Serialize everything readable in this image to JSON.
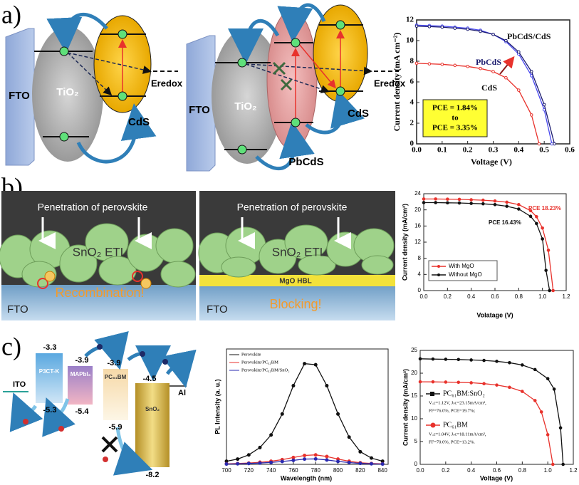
{
  "panel_labels": [
    "a)",
    "b)",
    "c)"
  ],
  "diagram_a1": {
    "fto": "FTO",
    "tio2": "TiO₂",
    "cds": "CdS",
    "eredox": "Eredox"
  },
  "diagram_a2": {
    "fto": "FTO",
    "tio2": "TiO₂",
    "pbcds": "PbCdS",
    "cds": "CdS",
    "eredox": "Eredox"
  },
  "diagram_b1": {
    "caption": "Penetration of perovskite",
    "etl": "SnO₂ ETL",
    "effect": "Recombination!",
    "fto": "FTO"
  },
  "diagram_b2": {
    "caption": "Penetration of perovskite",
    "etl": "SnO₂ ETL",
    "layer": "MgO HBL",
    "effect": "Blocking!",
    "fto": "FTO"
  },
  "diagram_c": {
    "ito": "ITO",
    "al": "Al",
    "layers": [
      {
        "name": "P3CT-K",
        "top": "-3.3",
        "bottom": "-5.3"
      },
      {
        "name": "MAPbI₃",
        "top": "-3.9",
        "bottom": "-5.4"
      },
      {
        "name": "PC₆₁BM",
        "top": "-3.9",
        "bottom": "-5.9"
      },
      {
        "name": "SnO₂",
        "top": "-4.5",
        "bottom": "-8.2"
      }
    ]
  },
  "chart_data": [
    {
      "type": "line",
      "xlabel": "Voltage (V)",
      "ylabel": "Current density (mA cm⁻²)",
      "xlim": [
        0,
        0.6
      ],
      "ylim": [
        0,
        12
      ],
      "xticks": [
        {
          "value": 0,
          "label": "0.0"
        },
        0.1,
        0.2,
        0.3,
        0.4,
        0.5,
        0.6
      ],
      "yticks": [
        0,
        2,
        4,
        6,
        8,
        10,
        12
      ],
      "annotations": [
        "PbCdS/CdS",
        "PbCdS",
        "CdS"
      ],
      "text_box": [
        "PCE = 1.84%",
        "to",
        "PCE = 3.35%"
      ],
      "series": [
        {
          "color": "#e8322c",
          "x": [
            0,
            0.05,
            0.1,
            0.15,
            0.2,
            0.25,
            0.3,
            0.35,
            0.4,
            0.45,
            0.48
          ],
          "values": [
            7.8,
            7.75,
            7.7,
            7.6,
            7.5,
            7.3,
            7.0,
            6.4,
            5.2,
            2.8,
            0
          ]
        },
        {
          "color": "#4a4af0",
          "x": [
            0,
            0.05,
            0.1,
            0.15,
            0.2,
            0.25,
            0.3,
            0.35,
            0.4,
            0.45,
            0.5,
            0.53
          ],
          "values": [
            11.5,
            11.45,
            11.4,
            11.3,
            11.2,
            11.0,
            10.6,
            9.9,
            8.7,
            6.6,
            3.3,
            0
          ]
        },
        {
          "color": "#1a1a6e",
          "x": [
            0,
            0.05,
            0.1,
            0.15,
            0.2,
            0.25,
            0.3,
            0.35,
            0.4,
            0.45,
            0.5,
            0.54
          ],
          "values": [
            11.4,
            11.35,
            11.3,
            11.2,
            11.1,
            10.9,
            10.6,
            10.0,
            8.9,
            7.0,
            3.8,
            0
          ]
        }
      ]
    },
    {
      "type": "line",
      "xlabel": "Volatage (V)",
      "ylabel": "Current density (mA/cm²)",
      "xlim": [
        0,
        1.2
      ],
      "ylim": [
        0,
        24
      ],
      "xticks": [
        {
          "value": 0,
          "label": "0.0"
        },
        0.2,
        0.4,
        0.6,
        0.8,
        {
          "value": 1,
          "label": "1.0"
        },
        1.2
      ],
      "yticks": [
        0,
        4,
        8,
        12,
        16,
        20,
        24
      ],
      "annotations": [
        "PCE 18.23%",
        "PCE 16.43%"
      ],
      "series": [
        {
          "name": "With MgO",
          "color": "#e8322c",
          "x": [
            0,
            0.1,
            0.2,
            0.3,
            0.4,
            0.5,
            0.6,
            0.7,
            0.8,
            0.9,
            0.95,
            1.0,
            1.05,
            1.09
          ],
          "values": [
            22.7,
            22.7,
            22.65,
            22.6,
            22.5,
            22.4,
            22.2,
            21.9,
            21.3,
            19.8,
            18.3,
            15.5,
            10,
            0
          ]
        },
        {
          "name": "Without MgO",
          "color": "#111111",
          "x": [
            0,
            0.1,
            0.2,
            0.3,
            0.4,
            0.5,
            0.6,
            0.7,
            0.8,
            0.9,
            0.95,
            1.0,
            1.03,
            1.06
          ],
          "values": [
            21.8,
            21.8,
            21.75,
            21.7,
            21.6,
            21.5,
            21.3,
            20.9,
            20.2,
            18.4,
            16.6,
            12.8,
            5,
            0
          ]
        }
      ]
    },
    {
      "type": "line",
      "xlabel": "Wavelength (nm)",
      "ylabel": "PL Intensity (a. u.)",
      "xlim": [
        700,
        845
      ],
      "ylim": [
        0,
        110
      ],
      "xticks": [
        700,
        720,
        740,
        760,
        780,
        800,
        820,
        840
      ],
      "x": [
        700,
        710,
        720,
        730,
        740,
        750,
        760,
        770,
        780,
        790,
        800,
        810,
        820,
        830,
        840
      ],
      "series": [
        {
          "name": "Perovskite",
          "color": "#111111",
          "values": [
            3,
            5,
            9,
            16,
            28,
            48,
            75,
            96,
            95,
            75,
            48,
            26,
            12,
            6,
            3
          ]
        },
        {
          "name": "Perovskite/PC₆₁BM",
          "color": "#e8322c",
          "values": [
            0.5,
            0.8,
            1.2,
            2,
            3,
            4.5,
            6.5,
            8.5,
            9,
            7.5,
            5,
            3,
            1.5,
            0.8,
            0.5
          ]
        },
        {
          "name": "Perovskite/PC₆₁BM/SnO₂",
          "color": "#2a2ab0",
          "values": [
            0.3,
            0.5,
            0.8,
            1.2,
            1.8,
            2.7,
            3.8,
            5,
            5.2,
            4.2,
            2.8,
            1.7,
            0.9,
            0.5,
            0.3
          ]
        }
      ]
    },
    {
      "type": "line",
      "xlabel": "Voltage (V)",
      "ylabel": "Current density (mA/cm²)",
      "xlim": [
        0,
        1.2
      ],
      "ylim": [
        0,
        25
      ],
      "xticks": [
        {
          "value": 0,
          "label": "0.0"
        },
        0.2,
        0.4,
        0.6,
        0.8,
        {
          "value": 1,
          "label": "1.0"
        },
        1.2
      ],
      "yticks": [
        0,
        5,
        10,
        15,
        20,
        25
      ],
      "series": [
        {
          "name": "PC₆₁BM:SnO₂",
          "color": "#111111",
          "notes": [
            "Vₒc=1.12V, Jₛc=23.15mA/cm²,",
            "FF=76.0%, PCE=19.7%;"
          ],
          "x": [
            0,
            0.1,
            0.2,
            0.3,
            0.4,
            0.5,
            0.6,
            0.7,
            0.8,
            0.9,
            1.0,
            1.05,
            1.1,
            1.12
          ],
          "values": [
            23.15,
            23.1,
            23.05,
            23.0,
            22.9,
            22.8,
            22.6,
            22.3,
            21.8,
            20.8,
            18.8,
            16.5,
            8,
            0
          ]
        },
        {
          "name": "PC₆₁BM",
          "color": "#e8322c",
          "notes": [
            "Vₒc=1.04V, Jₛc=18.11mA/cm²,",
            "FF=70.0%, PCE=13.2%."
          ],
          "x": [
            0,
            0.1,
            0.2,
            0.3,
            0.4,
            0.5,
            0.6,
            0.7,
            0.8,
            0.9,
            0.95,
            1.0,
            1.04
          ],
          "values": [
            18.11,
            18.1,
            18.05,
            18.0,
            17.9,
            17.7,
            17.4,
            16.9,
            16.0,
            14.0,
            11.5,
            6.5,
            0
          ]
        }
      ]
    }
  ]
}
